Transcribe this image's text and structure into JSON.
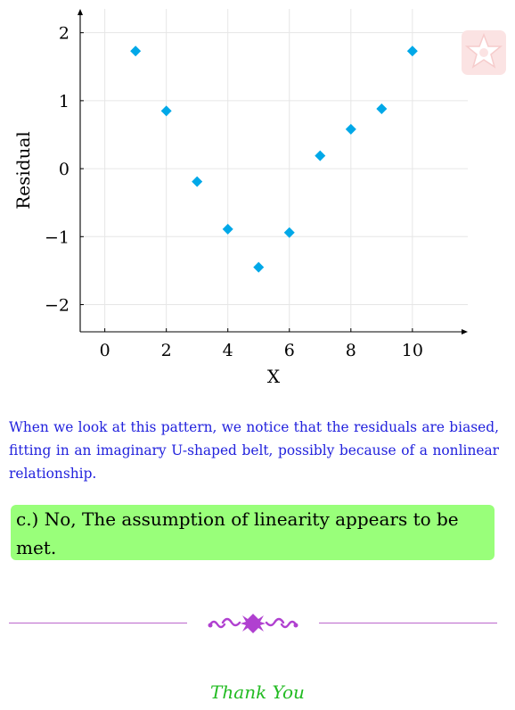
{
  "chart_data": {
    "type": "scatter",
    "title": "",
    "xlabel": "X",
    "ylabel": "Residual",
    "xlim": [
      -0.8,
      11.8
    ],
    "ylim": [
      -2.4,
      2.35
    ],
    "xticks": [
      0,
      2,
      4,
      6,
      8,
      10
    ],
    "yticks": [
      -2,
      -1,
      0,
      1,
      2
    ],
    "xtick_labels": [
      "0",
      "2",
      "4",
      "6",
      "8",
      "10"
    ],
    "ytick_labels": [
      "−2",
      "−1",
      "0",
      "1",
      "2"
    ],
    "grid": true,
    "marker": "diamond",
    "color": "#00a8e8",
    "points": [
      {
        "x": 1,
        "y": 1.73
      },
      {
        "x": 2,
        "y": 0.85
      },
      {
        "x": 3,
        "y": -0.19
      },
      {
        "x": 4,
        "y": -0.89
      },
      {
        "x": 5,
        "y": -1.45
      },
      {
        "x": 6,
        "y": -0.94
      },
      {
        "x": 7,
        "y": 0.19
      },
      {
        "x": 8,
        "y": 0.58
      },
      {
        "x": 9,
        "y": 0.88
      },
      {
        "x": 10,
        "y": 1.73
      }
    ]
  },
  "explanation_text": "When we look at this pattern, we notice that the residuals are biased, fitting in an imaginary U-shaped belt, possibly because of a nonlinear relationship.",
  "answer": {
    "option_label": "c.)",
    "text": "No, The assumption of linearity appears to be met."
  },
  "closing_text": "Thank You",
  "colors": {
    "explanation": "#2222dd",
    "answer_background": "#99ff7a",
    "divider": "#bb66cc",
    "closing": "#22bb22",
    "marker": "#00a8e8"
  }
}
